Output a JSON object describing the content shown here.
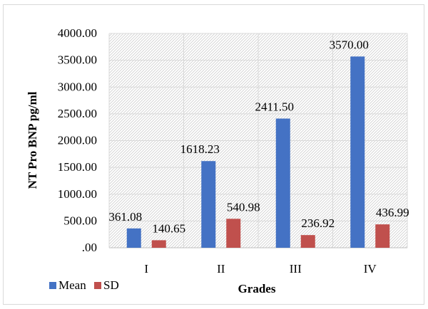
{
  "chart_data": {
    "type": "bar",
    "categories": [
      "I",
      "II",
      "III",
      "IV"
    ],
    "series": [
      {
        "name": "Mean",
        "color": "#4472c4",
        "values": [
          361.08,
          1618.23,
          2411.5,
          3570.0
        ]
      },
      {
        "name": "SD",
        "color": "#c0504d",
        "values": [
          140.65,
          540.98,
          236.92,
          436.99
        ]
      }
    ],
    "data_labels": {
      "Mean": [
        "361.08",
        "1618.23",
        "2411.50",
        "3570.00"
      ],
      "SD": [
        "140.65",
        "540.98",
        "236.92",
        "436.99"
      ]
    },
    "title": "",
    "xlabel": "Grades",
    "ylabel": "NT Pro BNP pg/ml",
    "ylim": [
      0,
      4000
    ],
    "y_ticks": [
      0,
      500,
      1000,
      1500,
      2000,
      2500,
      3000,
      3500,
      4000
    ],
    "y_tick_labels": [
      ".00",
      "500.00",
      "1000.00",
      "1500.00",
      "2000.00",
      "2500.00",
      "3000.00",
      "3500.00",
      "4000.00"
    ],
    "grid": true,
    "plot_background": "diagonal-hatch",
    "legend_position": "bottom-left"
  }
}
